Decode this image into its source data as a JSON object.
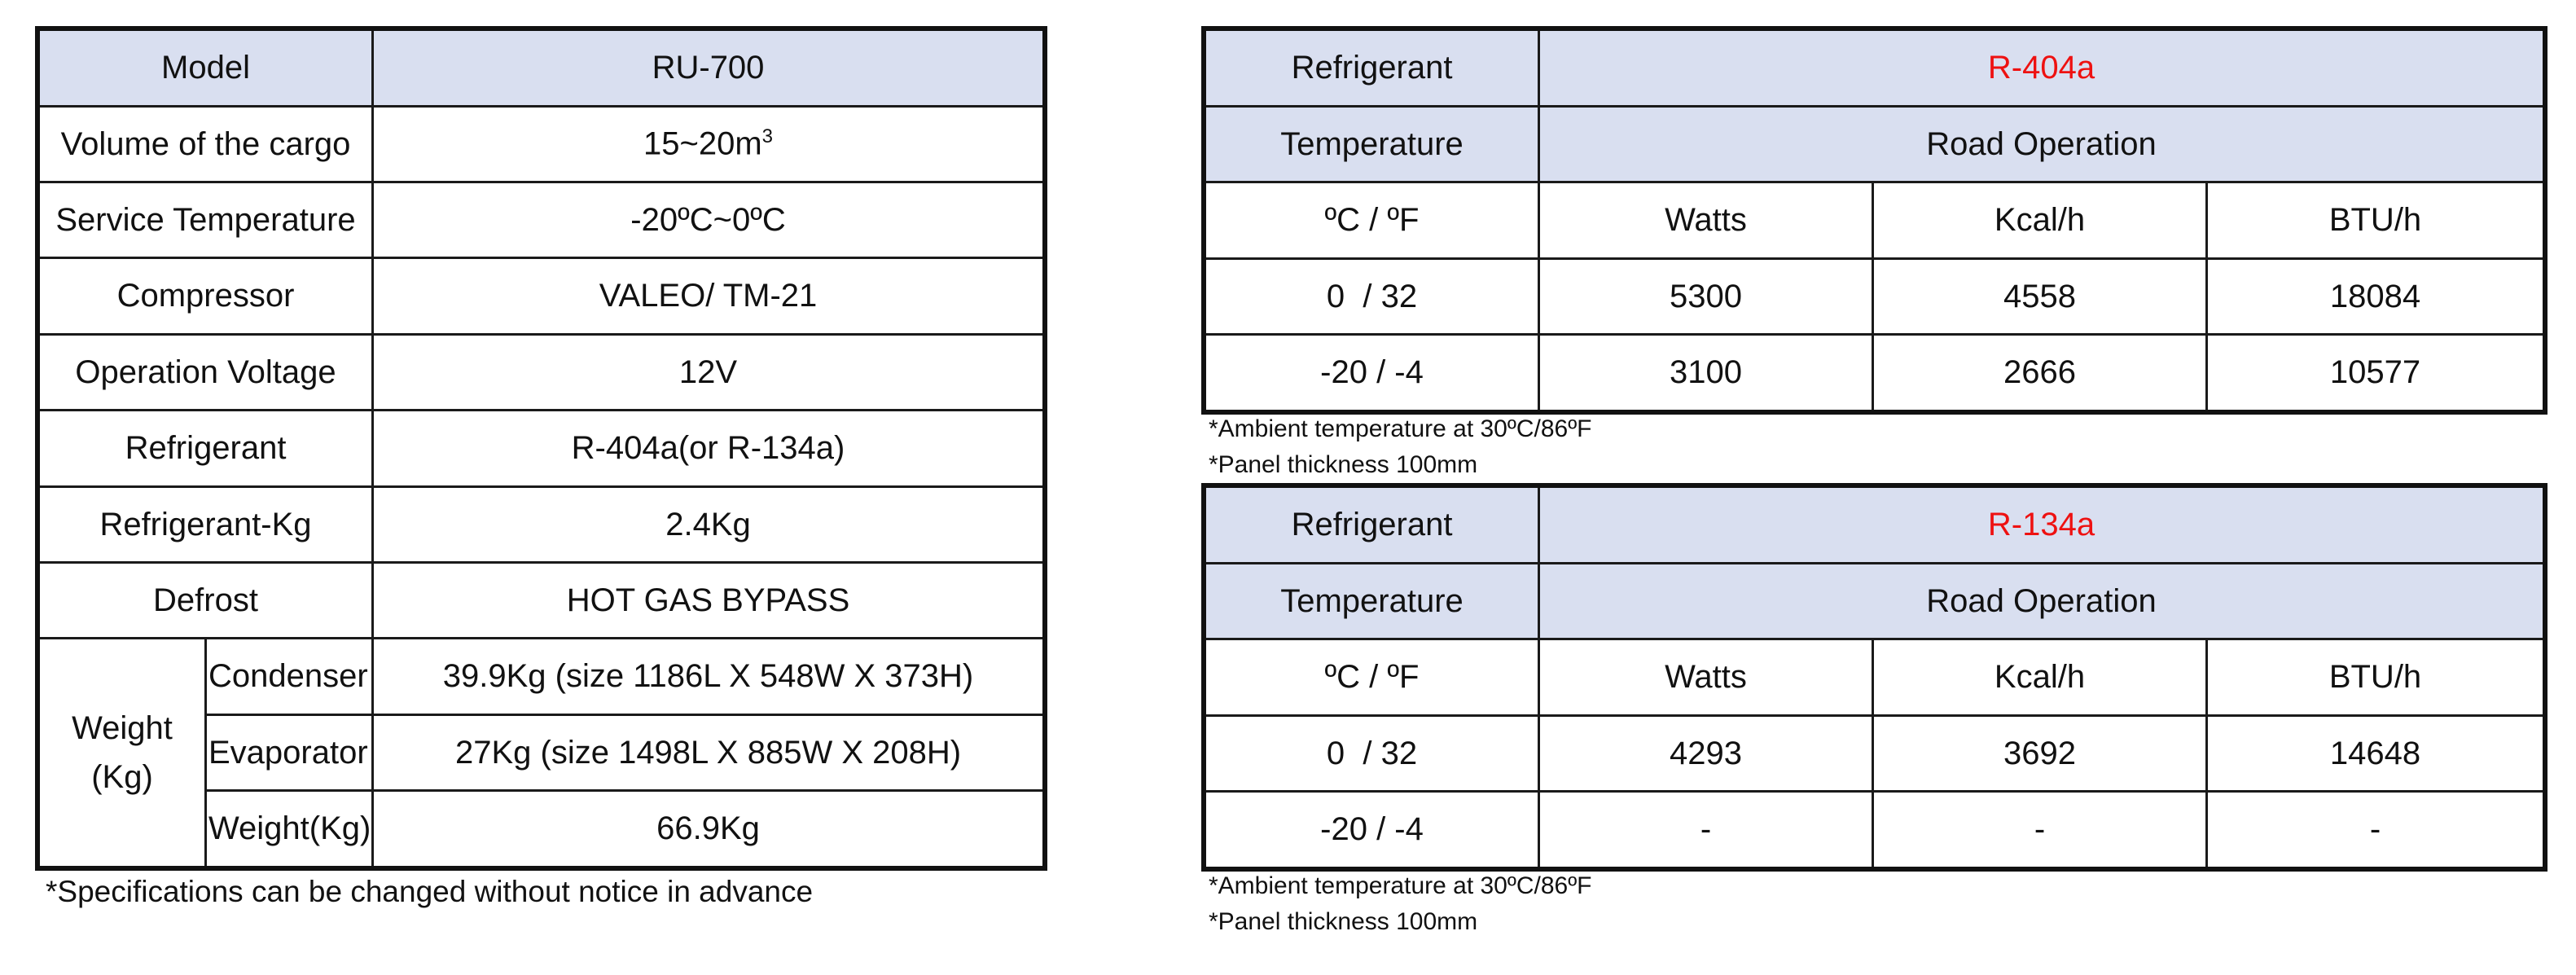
{
  "spec": {
    "model_label": "Model",
    "model_value": "RU-700",
    "rows": [
      {
        "label": "Volume of the cargo",
        "value": "15~20m",
        "sup": "3"
      },
      {
        "label": "Service Temperature",
        "value": "-20ºC~0ºC"
      },
      {
        "label": "Compressor",
        "value": "VALEO/ TM-21"
      },
      {
        "label": "Operation Voltage",
        "value": "12V"
      },
      {
        "label": "Refrigerant",
        "value": "R-404a(or R-134a)"
      },
      {
        "label": "Refrigerant-Kg",
        "value": "2.4Kg"
      },
      {
        "label": "Defrost",
        "value": "HOT GAS BYPASS"
      }
    ],
    "weight": {
      "label_line1": "Weight",
      "label_line2": "(Kg)",
      "rows": [
        {
          "label": "Condenser",
          "value": "39.9Kg (size 1186L X 548W X 373H)"
        },
        {
          "label": "Evaporator",
          "value": "27Kg (size 1498L X 885W X 208H)"
        },
        {
          "label": "Weight(Kg)",
          "value": "66.9Kg"
        }
      ]
    },
    "footnote": "*Specifications can be changed without notice in advance"
  },
  "perf_tables": [
    {
      "refrigerant_label": "Refrigerant",
      "refrigerant_value": "R-404a",
      "temperature_label": "Temperature",
      "operation_label": "Road Operation",
      "columns": [
        "ºC / ºF",
        "Watts",
        "Kcal/h",
        "BTU/h"
      ],
      "rows": [
        [
          "0  / 32",
          "5300",
          "4558",
          "18084"
        ],
        [
          "-20 / -4",
          "3100",
          "2666",
          "10577"
        ]
      ],
      "note1": "*Ambient temperature at 30ºC/86ºF",
      "note2": "*Panel thickness 100mm"
    },
    {
      "refrigerant_label": "Refrigerant",
      "refrigerant_value": "R-134a",
      "temperature_label": "Temperature",
      "operation_label": "Road Operation",
      "columns": [
        "ºC / ºF",
        "Watts",
        "Kcal/h",
        "BTU/h"
      ],
      "rows": [
        [
          "0  / 32",
          "4293",
          "3692",
          "14648"
        ],
        [
          "-20 / -4",
          "-",
          "-",
          "-"
        ]
      ],
      "note1": "*Ambient temperature at 30ºC/86ºF",
      "note2": "*Panel thickness 100mm"
    }
  ],
  "colors": {
    "header_bg": "#d9dff0",
    "highlight_text": "#ee1111"
  }
}
